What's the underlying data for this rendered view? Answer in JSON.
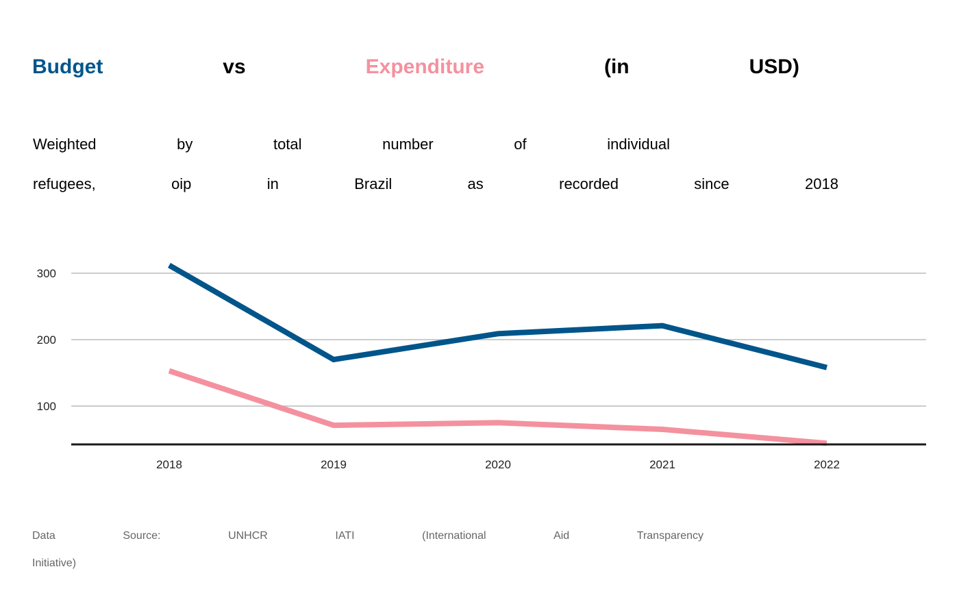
{
  "title": {
    "budget": "Budget",
    "vs": "vs",
    "expenditure": "Expenditure",
    "in": "(in",
    "usd": "USD)"
  },
  "subtitle": {
    "line1": [
      "Weighted",
      "by",
      "total",
      "number",
      "of",
      "individual"
    ],
    "line2": [
      "refugees,",
      "oip",
      "in",
      "Brazil",
      "as",
      "recorded",
      "since",
      "2018"
    ]
  },
  "source": {
    "line1": [
      "Data",
      "Source:",
      "UNHCR",
      "IATI",
      "(International",
      "Aid",
      "Transparency"
    ],
    "line2": "Initiative)"
  },
  "colors": {
    "budget": "#00558a",
    "expenditure": "#f4919f",
    "grid": "#cccccc",
    "baseline": "#1a1a1a"
  },
  "chart_data": {
    "type": "line",
    "x": [
      "2018",
      "2019",
      "2020",
      "2021",
      "2022"
    ],
    "series": [
      {
        "name": "Budget",
        "color": "#00558a",
        "values": [
          312,
          170,
          209,
          221,
          158
        ]
      },
      {
        "name": "Expenditure",
        "color": "#f4919f",
        "values": [
          153,
          71,
          75,
          65,
          44
        ]
      }
    ],
    "yticks": [
      "100",
      "200",
      "300"
    ],
    "ylim": [
      43,
      350
    ],
    "grid": true,
    "legend": "in title"
  }
}
